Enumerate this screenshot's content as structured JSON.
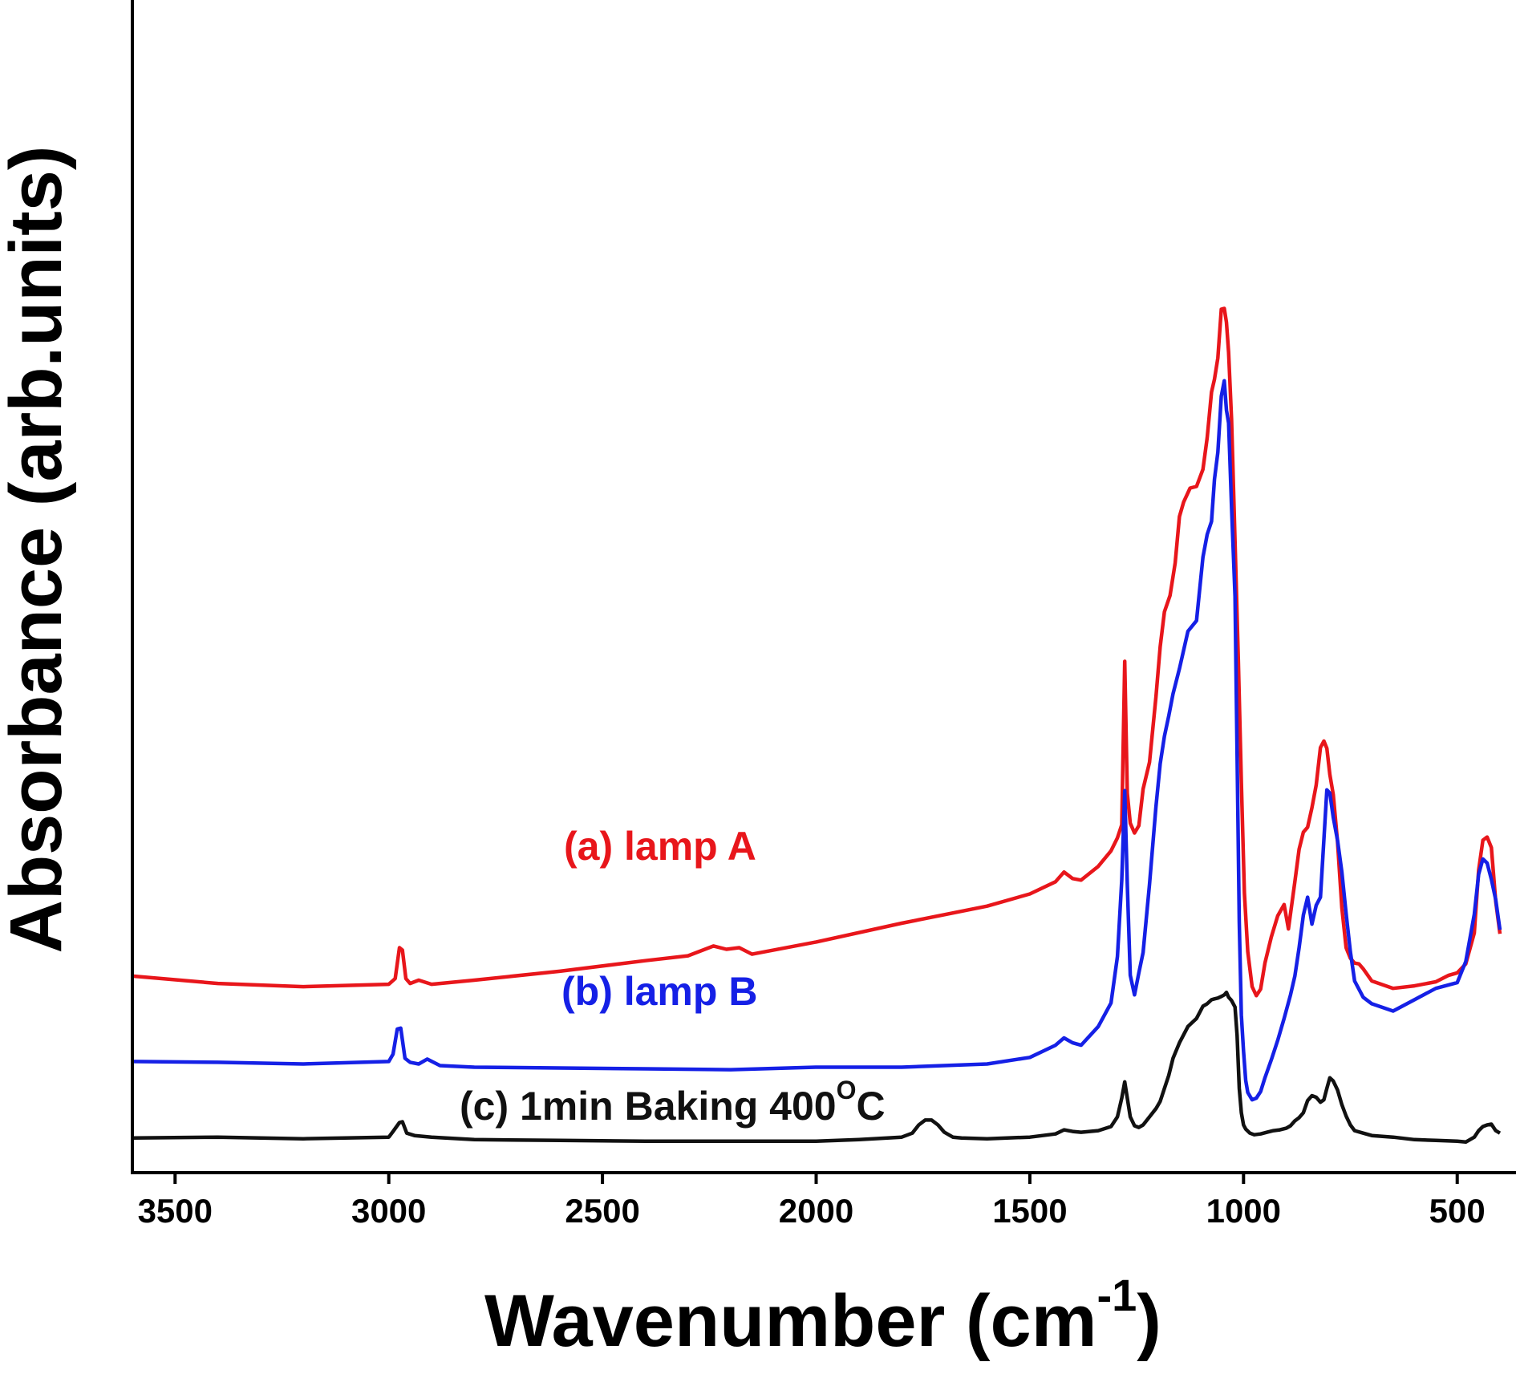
{
  "chart_data": {
    "type": "line",
    "title": "",
    "xlabel": "Wavenumber (cm",
    "xlabel_sup": "-1",
    "xlabel_end": ")",
    "ylabel": "Absorbance (arb.units)",
    "x_reversed": true,
    "xlim": [
      3600,
      400
    ],
    "ylim": [
      0,
      100
    ],
    "y_ticks_shown": false,
    "grid": false,
    "x_ticks": [
      3500,
      3000,
      2500,
      2000,
      1500,
      1000,
      500
    ],
    "x_tick_labels": [
      "3500",
      "3000",
      "2500",
      "2000",
      "1500",
      "1000",
      "500"
    ],
    "series": [
      {
        "label": "(a) lamp A",
        "color": "#e8161b",
        "x": [
          3600,
          3400,
          3200,
          3000,
          2985,
          2975,
          2968,
          2960,
          2950,
          2930,
          2900,
          2800,
          2600,
          2400,
          2300,
          2240,
          2210,
          2180,
          2150,
          2000,
          1800,
          1600,
          1500,
          1440,
          1420,
          1400,
          1380,
          1340,
          1310,
          1295,
          1285,
          1278,
          1272,
          1265,
          1255,
          1245,
          1235,
          1220,
          1205,
          1195,
          1185,
          1172,
          1160,
          1150,
          1140,
          1125,
          1110,
          1095,
          1085,
          1075,
          1068,
          1060,
          1052,
          1045,
          1040,
          1035,
          1028,
          1020,
          1012,
          1005,
          998,
          990,
          980,
          970,
          960,
          950,
          935,
          920,
          905,
          895,
          880,
          870,
          860,
          850,
          840,
          830,
          820,
          812,
          805,
          798,
          790,
          780,
          770,
          760,
          750,
          740,
          730,
          720,
          700,
          650,
          600,
          550,
          520,
          500,
          480,
          460,
          450,
          440,
          430,
          420,
          410,
          400
        ],
        "y": [
          21.8,
          20.9,
          20.5,
          20.8,
          21.5,
          25.3,
          25.0,
          21.5,
          20.9,
          21.3,
          20.8,
          21.3,
          22.4,
          23.7,
          24.3,
          25.5,
          25.1,
          25.3,
          24.5,
          26.0,
          28.3,
          30.4,
          31.9,
          33.4,
          34.6,
          33.8,
          33.6,
          35.3,
          37.2,
          38.8,
          40.4,
          60.5,
          44.3,
          40.6,
          39.4,
          40.3,
          44.8,
          48.1,
          56.1,
          62.3,
          66.6,
          68.6,
          72.6,
          78.3,
          80.1,
          81.8,
          82.0,
          84.1,
          88.0,
          93.6,
          95.2,
          97.8,
          103.8,
          103.9,
          102.2,
          98.5,
          90.2,
          75.3,
          60.4,
          45.6,
          32.0,
          24.8,
          20.5,
          19.4,
          20.2,
          23.4,
          26.6,
          29.2,
          30.6,
          27.6,
          33.4,
          37.4,
          39.5,
          40.1,
          42.5,
          45.3,
          49.9,
          50.7,
          49.8,
          46.6,
          44.1,
          38.3,
          30.2,
          25.3,
          24.0,
          23.4,
          23.3,
          22.7,
          21.2,
          20.3,
          20.6,
          21.1,
          21.9,
          22.2,
          23.3,
          27.1,
          34.8,
          38.5,
          38.9,
          37.6,
          31.0,
          27.0
        ]
      },
      {
        "label": "(b) lamp B",
        "color": "#1520e6",
        "x": [
          3600,
          3400,
          3200,
          3000,
          2990,
          2980,
          2972,
          2962,
          2950,
          2930,
          2910,
          2880,
          2800,
          2600,
          2400,
          2200,
          2000,
          1800,
          1600,
          1500,
          1440,
          1420,
          1400,
          1380,
          1340,
          1310,
          1295,
          1285,
          1278,
          1272,
          1265,
          1255,
          1245,
          1235,
          1220,
          1205,
          1195,
          1185,
          1175,
          1165,
          1150,
          1130,
          1110,
          1095,
          1085,
          1075,
          1068,
          1060,
          1052,
          1045,
          1040,
          1035,
          1028,
          1020,
          1015,
          1010,
          1005,
          1000,
          995,
          990,
          980,
          970,
          960,
          950,
          935,
          920,
          905,
          890,
          880,
          870,
          860,
          850,
          840,
          830,
          820,
          812,
          805,
          798,
          790,
          780,
          770,
          760,
          750,
          740,
          720,
          700,
          650,
          600,
          550,
          500,
          480,
          460,
          450,
          440,
          430,
          420,
          410,
          400
        ],
        "y": [
          11.3,
          11.2,
          11.0,
          11.3,
          12.2,
          15.3,
          15.4,
          11.7,
          11.2,
          11.0,
          11.6,
          10.8,
          10.6,
          10.5,
          10.4,
          10.3,
          10.6,
          10.6,
          11.0,
          11.8,
          13.3,
          14.2,
          13.6,
          13.3,
          15.6,
          18.5,
          24.2,
          33.6,
          44.6,
          33.1,
          21.9,
          19.5,
          22.2,
          24.7,
          33.1,
          42.6,
          47.9,
          51.3,
          53.8,
          56.5,
          59.6,
          64.2,
          65.5,
          73.3,
          76.1,
          77.7,
          82.9,
          86.2,
          93.1,
          95.0,
          91.4,
          89.8,
          79.4,
          68.5,
          48.9,
          28.4,
          17.0,
          12.6,
          9.0,
          7.5,
          6.6,
          6.8,
          7.6,
          9.3,
          11.5,
          13.9,
          16.6,
          19.5,
          21.8,
          25.3,
          29.3,
          31.5,
          28.2,
          30.5,
          31.5,
          38.6,
          44.7,
          44.3,
          41.3,
          38.5,
          34.6,
          29.5,
          24.8,
          21.2,
          19.2,
          18.4,
          17.5,
          18.9,
          20.3,
          21.0,
          23.6,
          29.4,
          34.3,
          36.2,
          35.7,
          33.7,
          31.2,
          27.5
        ]
      },
      {
        "label": "(c) 1min Baking 400",
        "label_sup": "O",
        "label_end": "C",
        "color": "#111111",
        "x": [
          3600,
          3400,
          3200,
          3000,
          2990,
          2975,
          2968,
          2958,
          2940,
          2900,
          2800,
          2600,
          2400,
          2200,
          2000,
          1900,
          1800,
          1775,
          1760,
          1745,
          1730,
          1715,
          1700,
          1680,
          1660,
          1600,
          1500,
          1440,
          1420,
          1400,
          1380,
          1340,
          1310,
          1295,
          1285,
          1278,
          1272,
          1265,
          1255,
          1245,
          1235,
          1220,
          1205,
          1195,
          1185,
          1175,
          1165,
          1150,
          1130,
          1110,
          1095,
          1085,
          1075,
          1068,
          1060,
          1052,
          1045,
          1040,
          1035,
          1028,
          1020,
          1015,
          1010,
          1005,
          1000,
          995,
          985,
          975,
          960,
          945,
          930,
          915,
          900,
          890,
          880,
          870,
          860,
          850,
          840,
          830,
          820,
          812,
          805,
          798,
          790,
          780,
          770,
          760,
          750,
          740,
          720,
          700,
          650,
          600,
          550,
          500,
          480,
          460,
          450,
          440,
          430,
          420,
          410,
          400
        ],
        "y": [
          1.9,
          2.0,
          1.8,
          2.0,
          2.7,
          3.8,
          3.9,
          2.5,
          2.2,
          2.0,
          1.7,
          1.6,
          1.5,
          1.5,
          1.5,
          1.7,
          2.0,
          2.5,
          3.5,
          4.1,
          4.1,
          3.5,
          2.6,
          2.0,
          1.9,
          1.8,
          2.0,
          2.4,
          2.9,
          2.7,
          2.6,
          2.8,
          3.3,
          4.5,
          6.8,
          8.8,
          6.8,
          4.5,
          3.4,
          3.2,
          3.5,
          4.5,
          5.5,
          6.4,
          8.0,
          9.6,
          11.7,
          13.6,
          15.6,
          16.6,
          18.1,
          18.4,
          18.9,
          19.0,
          19.1,
          19.3,
          19.5,
          19.8,
          19.2,
          18.8,
          18.0,
          14.5,
          8.0,
          5.0,
          3.5,
          3.0,
          2.5,
          2.3,
          2.4,
          2.6,
          2.8,
          2.9,
          3.1,
          3.4,
          4.0,
          4.4,
          5.0,
          6.5,
          7.1,
          6.9,
          6.3,
          6.6,
          8.0,
          9.3,
          8.9,
          7.8,
          6.0,
          4.6,
          3.5,
          2.8,
          2.5,
          2.2,
          2.0,
          1.7,
          1.6,
          1.5,
          1.4,
          2.0,
          2.8,
          3.3,
          3.5,
          3.6,
          2.8,
          2.5
        ]
      }
    ]
  }
}
